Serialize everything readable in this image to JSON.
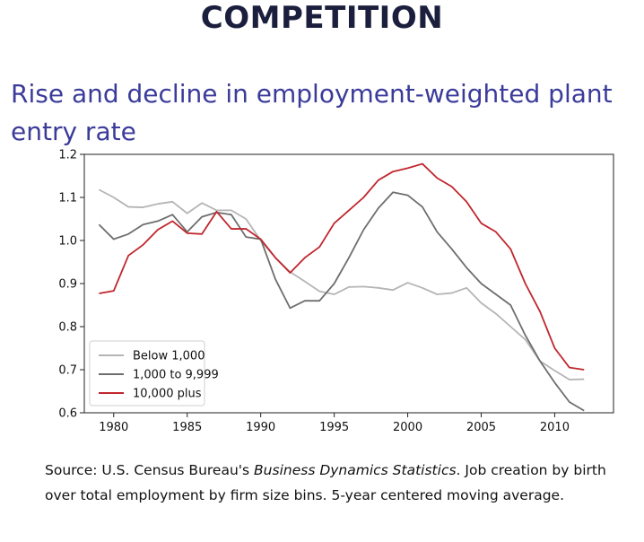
{
  "slide": {
    "title": "COMPETITION",
    "subtitle": "Rise and decline in employment-weighted plant entry rate"
  },
  "footnote": {
    "prefix": "Source: U.S. Census Bureau's ",
    "italic": "Business Dynamics Statistics",
    "suffix": ". Job creation by birth over total employment by firm size bins. 5-year centered moving average."
  },
  "chart_data": {
    "type": "line",
    "title": "",
    "xlabel": "",
    "ylabel": "",
    "xlim": [
      1978,
      2014
    ],
    "ylim": [
      0.6,
      1.2
    ],
    "xticks": [
      1980,
      1985,
      1990,
      1995,
      2000,
      2005,
      2010
    ],
    "yticks": [
      0.6,
      0.7,
      0.8,
      0.9,
      1.0,
      1.1,
      1.2
    ],
    "x": [
      1979,
      1980,
      1981,
      1982,
      1983,
      1984,
      1985,
      1986,
      1987,
      1988,
      1989,
      1990,
      1991,
      1992,
      1993,
      1994,
      1995,
      1996,
      1997,
      1998,
      1999,
      2000,
      2001,
      2002,
      2003,
      2004,
      2005,
      2006,
      2007,
      2008,
      2009,
      2010,
      2011,
      2012
    ],
    "legend_position": "lower-left",
    "series": [
      {
        "name": "Below 1,000",
        "color": "#b5b5b5",
        "values": [
          1.118,
          1.1,
          1.078,
          1.077,
          1.085,
          1.09,
          1.063,
          1.087,
          1.07,
          1.07,
          1.05,
          1.0,
          0.96,
          0.927,
          0.905,
          0.882,
          0.875,
          0.892,
          0.893,
          0.89,
          0.885,
          0.902,
          0.89,
          0.875,
          0.878,
          0.89,
          0.855,
          0.83,
          0.8,
          0.77,
          0.72,
          0.698,
          0.677,
          0.678
        ]
      },
      {
        "name": "1,000 to 9,999",
        "color": "#6e6e6e",
        "values": [
          1.037,
          1.003,
          1.015,
          1.037,
          1.045,
          1.06,
          1.02,
          1.055,
          1.065,
          1.06,
          1.008,
          1.003,
          0.91,
          0.843,
          0.86,
          0.86,
          0.9,
          0.96,
          1.025,
          1.075,
          1.112,
          1.105,
          1.078,
          1.02,
          0.98,
          0.937,
          0.9,
          0.875,
          0.85,
          0.78,
          0.72,
          0.67,
          0.625,
          0.605
        ]
      },
      {
        "name": "10,000 plus",
        "color": "#c0262d",
        "values": [
          0.877,
          0.883,
          0.965,
          0.99,
          1.025,
          1.045,
          1.017,
          1.015,
          1.067,
          1.027,
          1.027,
          1.003,
          0.96,
          0.925,
          0.96,
          0.985,
          1.04,
          1.07,
          1.1,
          1.14,
          1.16,
          1.168,
          1.178,
          1.145,
          1.125,
          1.09,
          1.04,
          1.02,
          0.98,
          0.9,
          0.835,
          0.75,
          0.705,
          0.7
        ]
      }
    ]
  }
}
